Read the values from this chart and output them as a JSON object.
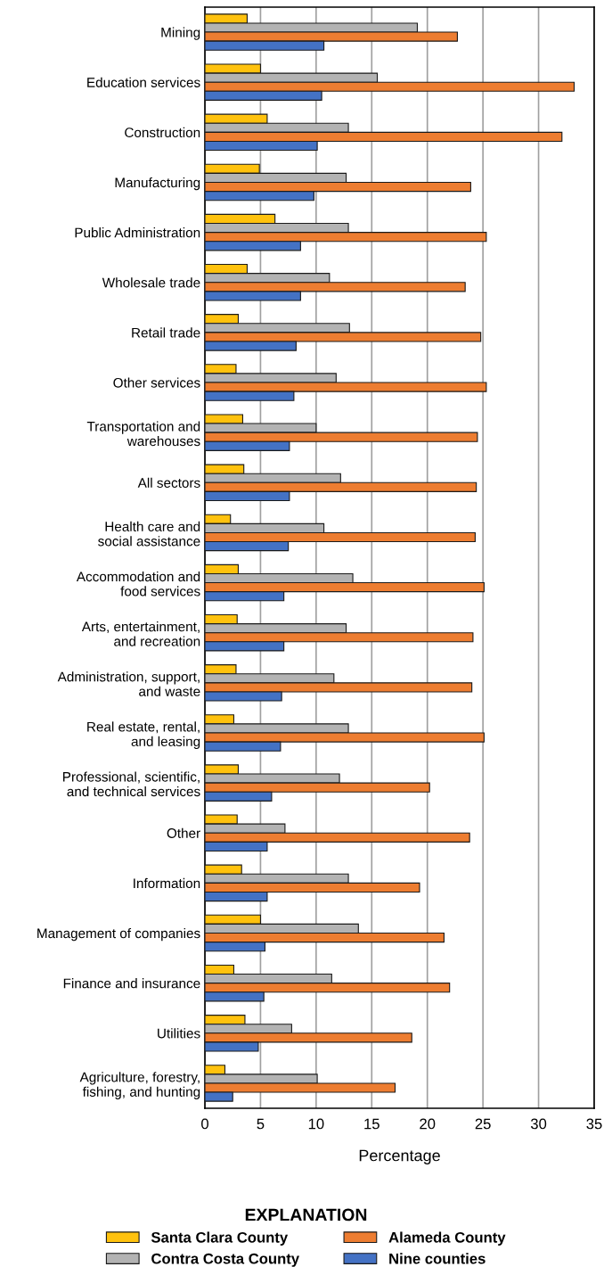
{
  "chart_data": {
    "type": "bar",
    "orientation": "horizontal",
    "categories": [
      "Mining",
      "Education services",
      "Construction",
      "Manufacturing",
      "Public Administration",
      "Wholesale trade",
      "Retail trade",
      "Other services",
      "Transportation and\nwarehouses",
      "All sectors",
      "Health care and\nsocial assistance",
      "Accommodation and\nfood services",
      "Arts, entertainment,\nand recreation",
      "Administration, support,\nand waste",
      "Real estate, rental,\nand leasing",
      "Professional, scientific,\nand technical services",
      "Other",
      "Information",
      "Management of companies",
      "Finance and insurance",
      "Utilities",
      "Agriculture, forestry,\nfishing, and hunting"
    ],
    "series": [
      {
        "name": "Santa Clara County",
        "color": "#ffc20e",
        "values": [
          3.8,
          5.0,
          5.6,
          4.9,
          6.3,
          3.8,
          3.0,
          2.8,
          3.4,
          3.5,
          2.3,
          3.0,
          2.9,
          2.8,
          2.6,
          3.0,
          2.9,
          3.3,
          5.0,
          2.6,
          3.6,
          1.8
        ]
      },
      {
        "name": "Contra Costa County",
        "color": "#b3b3b3",
        "values": [
          19.1,
          15.5,
          12.9,
          12.7,
          12.9,
          11.2,
          13.0,
          11.8,
          10.0,
          12.2,
          10.7,
          13.3,
          12.7,
          11.6,
          12.9,
          12.1,
          7.2,
          12.9,
          13.8,
          11.4,
          7.8,
          10.1
        ]
      },
      {
        "name": "Alameda County",
        "color": "#ed7d31",
        "values": [
          22.7,
          33.2,
          32.1,
          23.9,
          25.3,
          23.4,
          24.8,
          25.3,
          24.5,
          24.4,
          24.3,
          25.1,
          24.1,
          24.0,
          25.1,
          20.2,
          23.8,
          19.3,
          21.5,
          22.0,
          18.6,
          17.1
        ]
      },
      {
        "name": "Nine counties",
        "color": "#4472c4",
        "values": [
          10.7,
          10.5,
          10.1,
          9.8,
          8.6,
          8.6,
          8.2,
          8.0,
          7.6,
          7.6,
          7.5,
          7.1,
          7.1,
          6.9,
          6.8,
          6.0,
          5.6,
          5.6,
          5.4,
          5.3,
          4.8,
          2.5
        ]
      }
    ],
    "xlabel": "Percentage",
    "xlim": [
      0,
      35
    ],
    "xticks": [
      0,
      5,
      10,
      15,
      20,
      25,
      30,
      35
    ],
    "grid": "x",
    "legend": "bottom",
    "legend_title": "EXPLANATION"
  }
}
